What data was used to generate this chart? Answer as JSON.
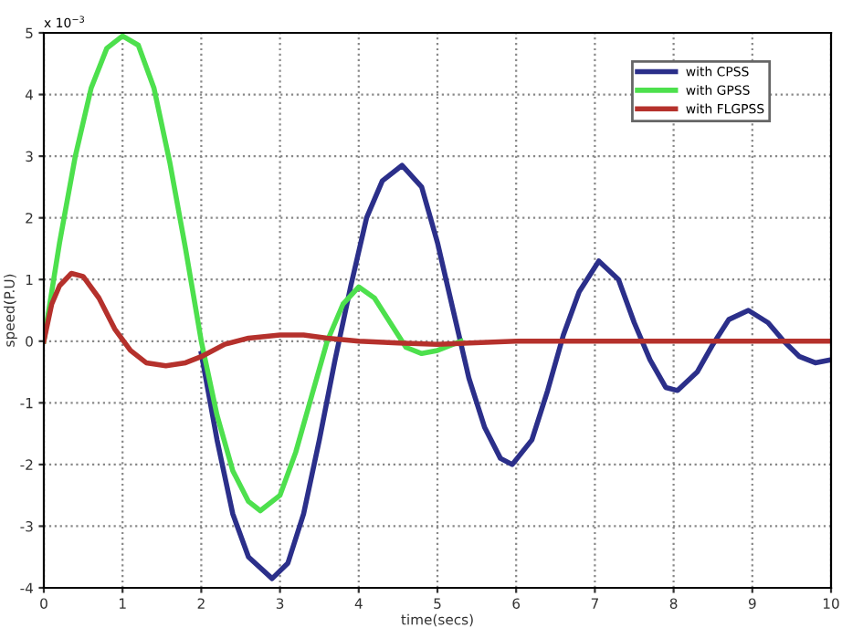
{
  "chart_data": {
    "type": "line",
    "xlabel": "time(secs)",
    "ylabel": "speed(P.U)",
    "annotations": [
      "x 10$^{−3}$"
    ],
    "xlim": [
      0,
      10
    ],
    "xticks": [
      0,
      1,
      2,
      3,
      4,
      5,
      6,
      7,
      8,
      9,
      10
    ],
    "ylim": [
      -4,
      5
    ],
    "yticks": [
      -4,
      -3,
      -2,
      -1,
      0,
      1,
      2,
      3,
      4,
      5
    ],
    "grid": true,
    "legend": "top right",
    "marker": "none",
    "line_style": "solid",
    "series": [
      {
        "name": "with CPSS",
        "color": "#2b2f8a",
        "x": [
          2.0,
          2.2,
          2.4,
          2.6,
          2.9,
          3.1,
          3.3,
          3.5,
          3.7,
          3.9,
          4.1,
          4.3,
          4.55,
          4.8,
          5.0,
          5.2,
          5.4,
          5.6,
          5.8,
          5.95,
          6.2,
          6.4,
          6.6,
          6.8,
          7.05,
          7.3,
          7.5,
          7.7,
          7.9,
          8.05,
          8.3,
          8.5,
          8.7,
          8.95,
          9.2,
          9.4,
          9.6,
          9.8,
          10.0
        ],
        "values": [
          -0.2,
          -1.6,
          -2.8,
          -3.5,
          -3.85,
          -3.6,
          -2.8,
          -1.6,
          -0.3,
          0.9,
          2.0,
          2.6,
          2.85,
          2.5,
          1.6,
          0.5,
          -0.6,
          -1.4,
          -1.9,
          -2.0,
          -1.6,
          -0.8,
          0.1,
          0.8,
          1.3,
          1.0,
          0.3,
          -0.3,
          -0.75,
          -0.8,
          -0.5,
          -0.05,
          0.35,
          0.5,
          0.3,
          0.0,
          -0.25,
          -0.35,
          -0.3
        ]
      },
      {
        "name": "with GPSS",
        "color": "#4de04d",
        "x": [
          0,
          0.2,
          0.4,
          0.6,
          0.8,
          1.0,
          1.2,
          1.4,
          1.6,
          1.8,
          2.0,
          2.2,
          2.4,
          2.6,
          2.75,
          3.0,
          3.2,
          3.4,
          3.6,
          3.8,
          4.0,
          4.2,
          4.4,
          4.6,
          4.8,
          5.0,
          5.2,
          5.3
        ],
        "values": [
          0,
          1.6,
          3.0,
          4.1,
          4.75,
          4.95,
          4.8,
          4.1,
          2.9,
          1.5,
          0.0,
          -1.2,
          -2.1,
          -2.6,
          -2.75,
          -2.5,
          -1.8,
          -0.9,
          0.0,
          0.6,
          0.88,
          0.7,
          0.3,
          -0.1,
          -0.2,
          -0.15,
          -0.05,
          0.0
        ]
      },
      {
        "name": "with FLGPSS",
        "color": "#b5312c",
        "x": [
          0,
          0.1,
          0.2,
          0.35,
          0.5,
          0.7,
          0.9,
          1.1,
          1.3,
          1.55,
          1.8,
          2.0,
          2.3,
          2.6,
          3.0,
          3.3,
          3.6,
          4.0,
          4.5,
          5,
          6,
          7,
          8,
          9,
          10
        ],
        "values": [
          0,
          0.6,
          0.9,
          1.1,
          1.05,
          0.7,
          0.2,
          -0.15,
          -0.35,
          -0.4,
          -0.35,
          -0.25,
          -0.05,
          0.05,
          0.1,
          0.1,
          0.05,
          0.0,
          -0.03,
          -0.05,
          0,
          0,
          0,
          0,
          0
        ]
      }
    ]
  }
}
